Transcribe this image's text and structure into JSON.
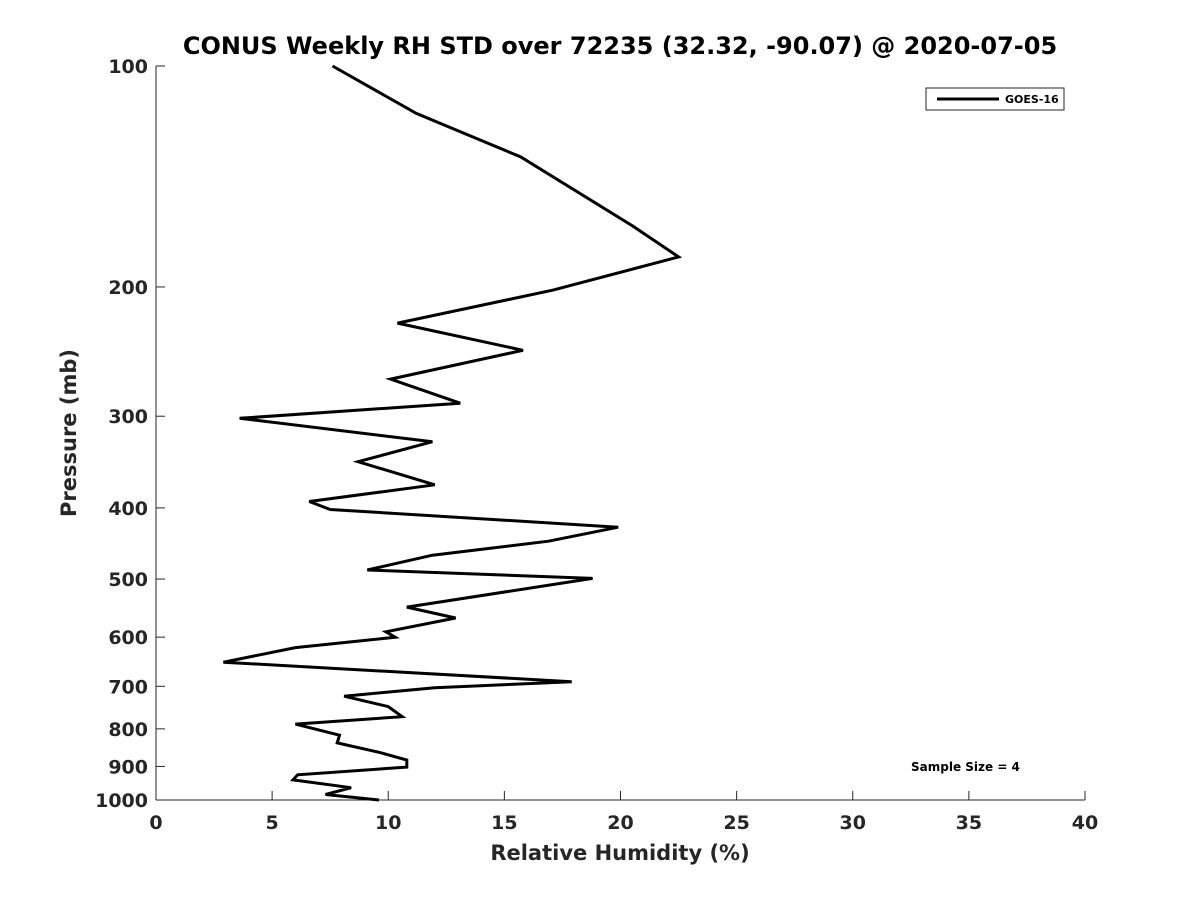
{
  "chart_data": {
    "type": "line",
    "title": "CONUS Weekly RH STD over 72235 (32.32, -90.07) @ 2020-07-05",
    "xlabel": "Relative Humidity (%)",
    "ylabel": "Pressure (mb)",
    "xlim": [
      0,
      40
    ],
    "ylim": [
      100,
      1000
    ],
    "y_scale": "log",
    "y_reversed": true,
    "x_ticks": [
      0,
      5,
      10,
      15,
      20,
      25,
      30,
      35,
      40
    ],
    "y_ticks": [
      100,
      200,
      300,
      400,
      500,
      600,
      700,
      800,
      900,
      1000
    ],
    "grid": false,
    "legend_position": "top-right",
    "annotation": "Sample Size = 4",
    "series": [
      {
        "name": "GOES-16",
        "color": "#000000",
        "x": [
          7.6,
          11.2,
          15.7,
          20.5,
          22.5,
          17.1,
          10.4,
          15.8,
          10.1,
          13.1,
          3.6,
          11.9,
          8.7,
          12.0,
          6.6,
          7.5,
          19.9,
          16.9,
          11.9,
          9.1,
          18.8,
          10.8,
          12.9,
          9.9,
          10.3,
          6.0,
          2.9,
          17.9,
          12.0,
          8.1,
          10.0,
          10.6,
          6.0,
          7.9,
          7.8,
          9.6,
          10.8,
          10.8,
          6.1,
          5.9,
          8.4,
          7.3,
          9.6
        ],
        "y": [
          100,
          116,
          133,
          165,
          182,
          202,
          224,
          244,
          267,
          288,
          302,
          325,
          346,
          372,
          392,
          402,
          425,
          444,
          464,
          486,
          499,
          546,
          565,
          590,
          600,
          620,
          649,
          690,
          703,
          722,
          746,
          770,
          788,
          816,
          836,
          861,
          882,
          902,
          924,
          939,
          962,
          983,
          1000
        ]
      }
    ]
  }
}
